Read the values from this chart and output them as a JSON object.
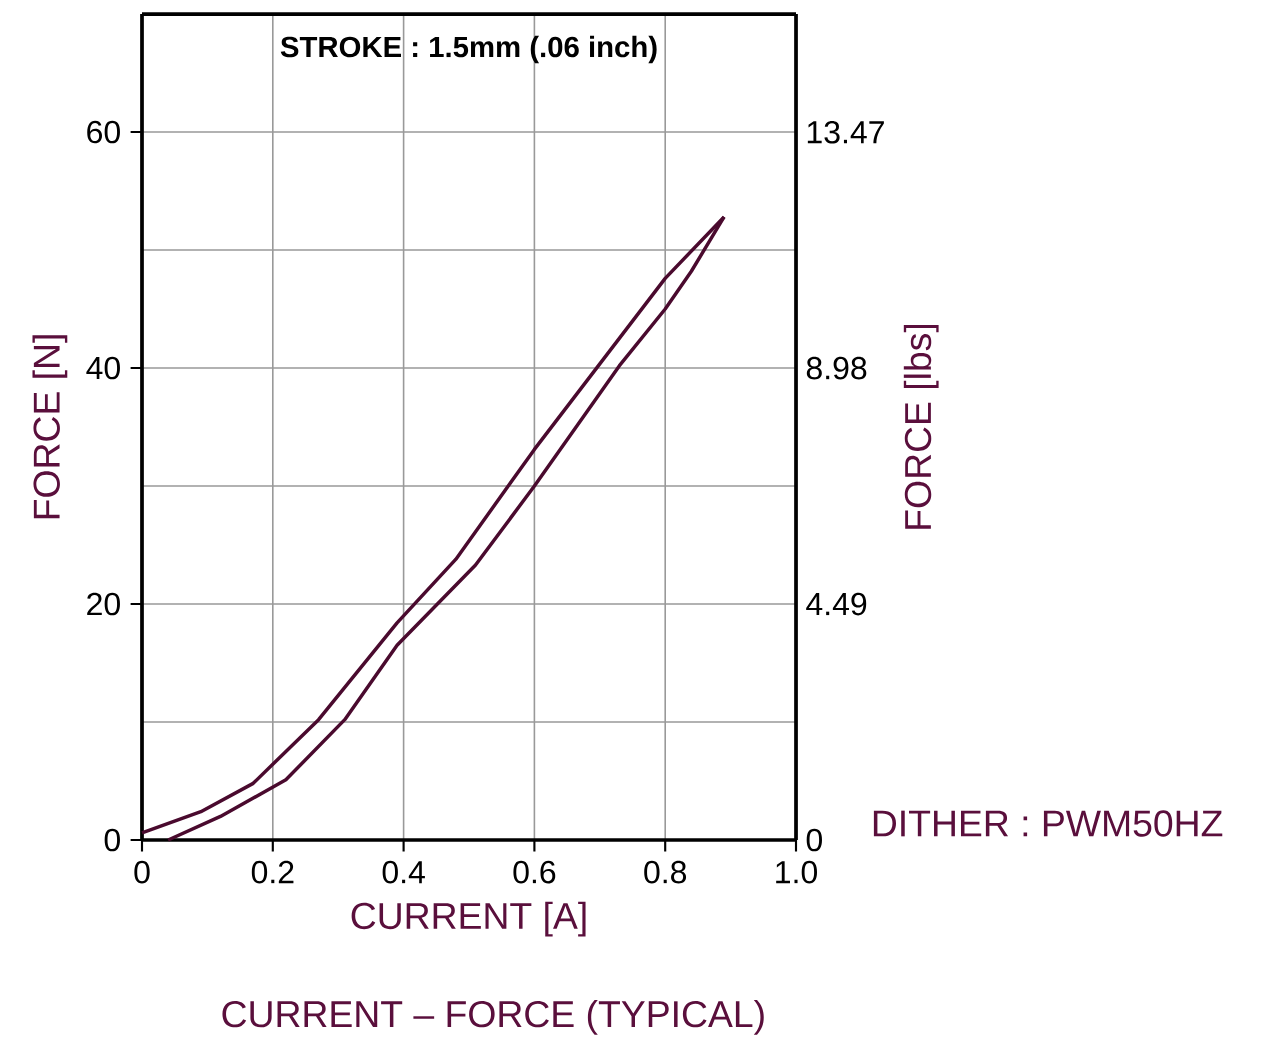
{
  "chart_data": {
    "type": "line",
    "title": "CURRENT – FORCE (TYPICAL)",
    "xlabel": "CURRENT [A]",
    "ylabel": "FORCE [N]",
    "y2label": "FORCE [lbs]",
    "annotations": [
      "STROKE : 1.5mm (.06 inch)",
      "DITHER : PWM50HZ"
    ],
    "xlim": [
      0,
      1
    ],
    "ylim": [
      0,
      70
    ],
    "y2lim": [
      0,
      15.72
    ],
    "xticks": [
      0,
      0.2,
      0.4,
      0.6,
      0.8,
      {
        "value": 1,
        "label": "1.0"
      }
    ],
    "yticks": [
      0,
      20,
      40,
      60
    ],
    "y2ticks": [
      0,
      4.49,
      8.98,
      13.47
    ],
    "grid": true,
    "marker": "none",
    "line_style": "solid",
    "series": [
      {
        "color": "#4a0a2e",
        "x": [
          0,
          0.09,
          0.17,
          0.27,
          0.39,
          0.48,
          0.6,
          0.8,
          0.89
        ],
        "values": [
          0.6,
          2.4,
          4.8,
          10.2,
          18.4,
          23.8,
          33.1,
          47.6,
          52.8
        ]
      },
      {
        "color": "#4a0a2e",
        "x": [
          0.04,
          0.12,
          0.22,
          0.31,
          0.39,
          0.51,
          0.6,
          0.73,
          0.8,
          0.84,
          0.89
        ],
        "values": [
          0,
          2.0,
          5.1,
          10.2,
          16.5,
          23.3,
          30.0,
          40.2,
          45.0,
          48.2,
          52.8
        ]
      }
    ]
  }
}
